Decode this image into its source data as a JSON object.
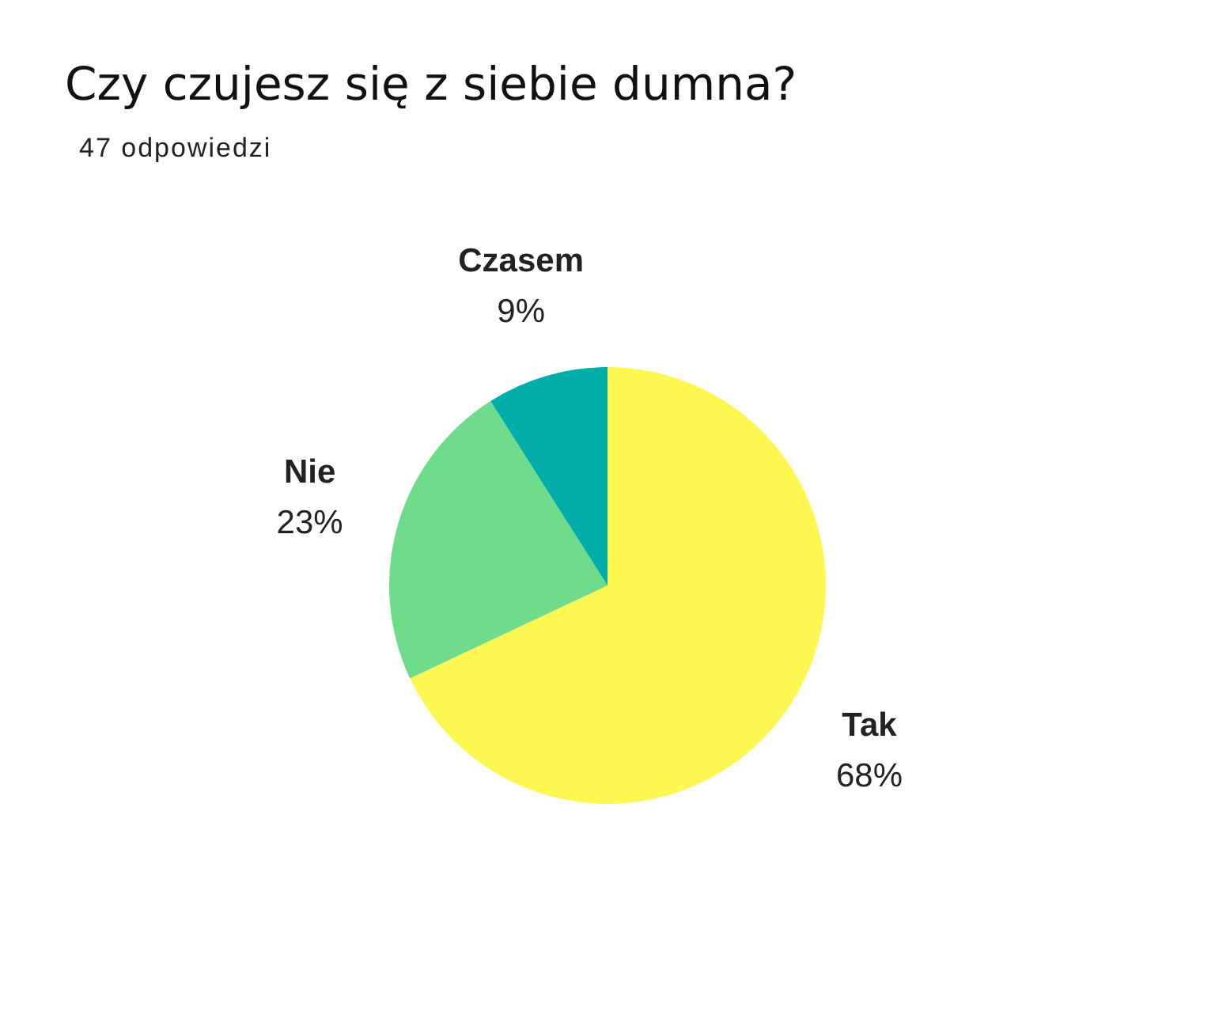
{
  "chart_data": {
    "type": "pie",
    "title": "Czy czujesz się z siebie dumna?",
    "subtitle": "47 odpowiedzi",
    "categories": [
      "Tak",
      "Nie",
      "Czasem"
    ],
    "values": [
      68,
      23,
      9
    ],
    "colors": [
      "#fff852",
      "#6fdc8c",
      "#00ada9"
    ],
    "value_labels": [
      "68%",
      "23%",
      "9%"
    ]
  }
}
